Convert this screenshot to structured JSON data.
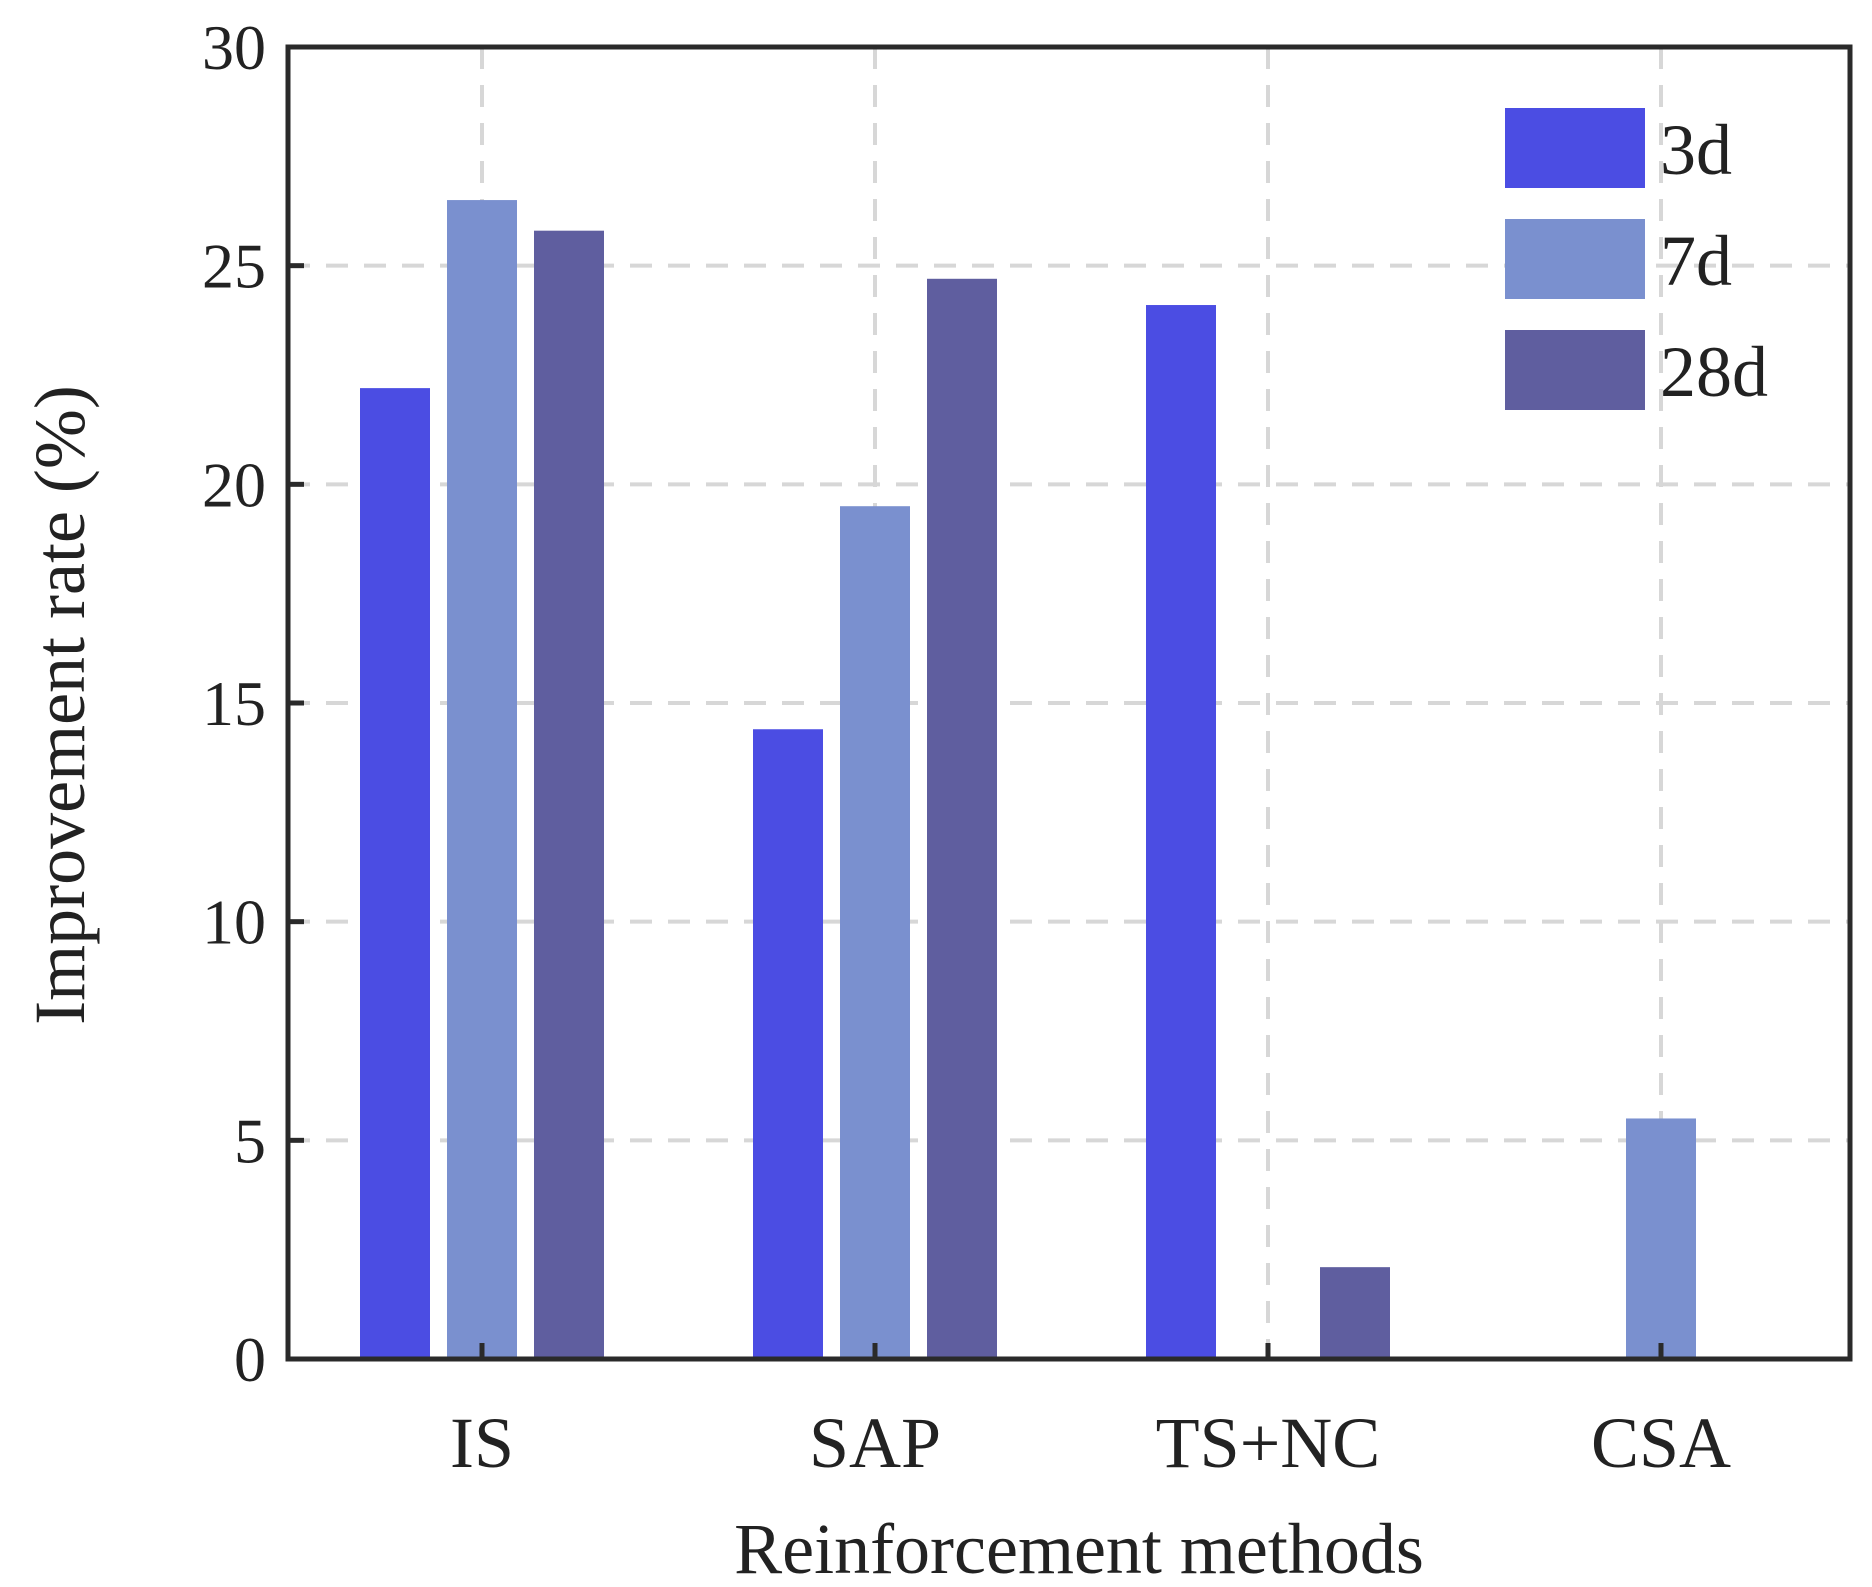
{
  "chart_data": {
    "type": "bar",
    "title": "",
    "xlabel": "Reinforcement methods",
    "ylabel": "Improvement rate (%)",
    "ylim": [
      0,
      30
    ],
    "yticks": [
      0,
      5,
      10,
      15,
      20,
      25,
      30
    ],
    "grid": true,
    "legend_position": "top-right",
    "categories": [
      "IS",
      "SAP",
      "TS+NC",
      "CSA"
    ],
    "series": [
      {
        "name": "3d",
        "color": "#4b4de3",
        "values": [
          22.2,
          14.4,
          24.1,
          null
        ]
      },
      {
        "name": "7d",
        "color": "#7a90cf",
        "values": [
          26.5,
          19.5,
          null,
          5.5
        ]
      },
      {
        "name": "28d",
        "color": "#5f5e9f",
        "values": [
          25.8,
          24.7,
          2.1,
          null
        ]
      }
    ]
  }
}
